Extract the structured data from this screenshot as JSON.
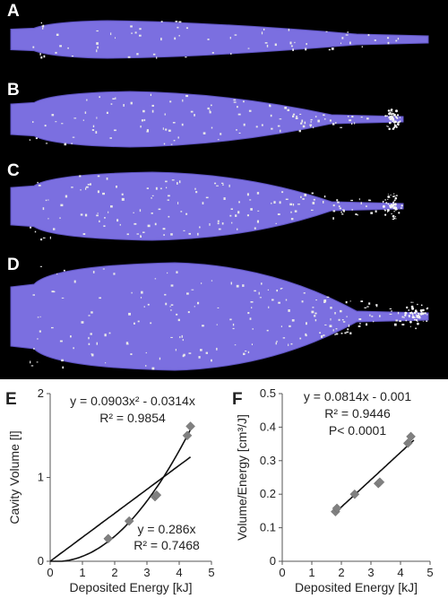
{
  "panels": [
    {
      "letter": "A",
      "fill": "#7b6fe0"
    },
    {
      "letter": "B",
      "fill": "#7b6fe0"
    },
    {
      "letter": "C",
      "fill": "#7b6fe0"
    },
    {
      "letter": "D",
      "fill": "#7b6fe0"
    }
  ],
  "chart_data": [
    {
      "type": "scatter",
      "panel_letter": "E",
      "xlabel": "Deposited Energy [kJ]",
      "ylabel": "Cavity Volume [l]",
      "xlim": [
        0,
        5
      ],
      "ylim": [
        0,
        2
      ],
      "xticks": [
        "0",
        "1",
        "2",
        "3",
        "4",
        "5"
      ],
      "yticks": [
        "0",
        "1",
        "2"
      ],
      "marker_color": "#808080",
      "series": [
        {
          "x": [
            1.8,
            2.45,
            3.25,
            3.3,
            4.25,
            4.35
          ],
          "y": [
            0.27,
            0.48,
            0.77,
            0.79,
            1.5,
            1.61
          ]
        }
      ],
      "fits": [
        {
          "kind": "poly2",
          "a": 0.0903,
          "b": -0.0314,
          "label": "y = 0.0903x² - 0.0314x",
          "r2": "R² = 0.9854"
        },
        {
          "kind": "linear",
          "a": 0.286,
          "b": 0,
          "label": "y = 0.286x",
          "r2": "R² = 0.7468"
        }
      ]
    },
    {
      "type": "scatter",
      "panel_letter": "F",
      "xlabel": "Deposited  Energy [kJ]",
      "ylabel": "Volume/Energy [cm³/J]",
      "xlim": [
        0,
        5
      ],
      "ylim": [
        0,
        0.5
      ],
      "xticks": [
        "0",
        "1",
        "2",
        "3",
        "4",
        "5"
      ],
      "yticks": [
        "0",
        "0.1",
        "0.2",
        "0.3",
        "0.4",
        "0.5"
      ],
      "marker_color": "#808080",
      "series": [
        {
          "x": [
            1.8,
            1.85,
            2.45,
            3.25,
            3.3,
            4.25,
            4.35
          ],
          "y": [
            0.148,
            0.158,
            0.2,
            0.232,
            0.236,
            0.352,
            0.372
          ]
        }
      ],
      "fits": [
        {
          "kind": "linear",
          "a": 0.0814,
          "b": -0.001,
          "label": "y = 0.0814x - 0.001",
          "r2": "R² = 0.9446",
          "p": "P< 0.0001"
        }
      ]
    }
  ]
}
